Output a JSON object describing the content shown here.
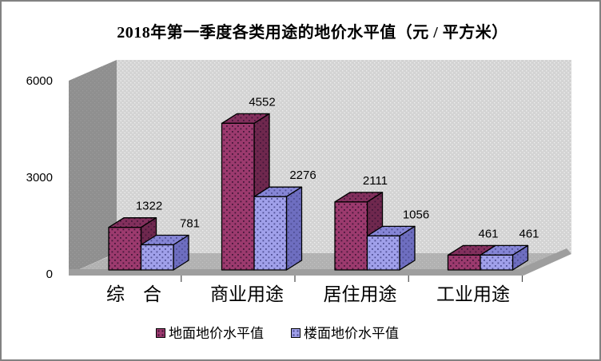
{
  "window": {
    "background": "#ffffff",
    "border_color": "#828282"
  },
  "chart_data": {
    "type": "bar",
    "projection": "3d-clustered-column",
    "title": "2018年第一季度各类用途的地价水平值（元 / 平方米）",
    "categories": [
      "综　合",
      "商业用途",
      "居住用途",
      "工业用途"
    ],
    "series": [
      {
        "name": "地面地价水平值",
        "values": [
          1322,
          4552,
          2111,
          461
        ],
        "color": "#9C3A6E",
        "color_top": "#83305D",
        "color_side": "#6F284E",
        "dot_color": "#44163A"
      },
      {
        "name": "楼面地价水平值",
        "values": [
          781,
          2276,
          1056,
          461
        ],
        "color": "#A0A0EA",
        "color_top": "#8686D6",
        "color_side": "#6E6EC0",
        "dot_color": "#4F4F94"
      }
    ],
    "xlabel": "",
    "ylabel": "",
    "ylim": [
      0,
      6000
    ],
    "yticks": [
      0,
      3000,
      6000
    ],
    "grid": false,
    "value_labels": true,
    "legend_position": "bottom",
    "walls": {
      "back_wall": "#D3D3D3",
      "back_wall_dot": "#EDEDED",
      "side_wall": "#8F8F8F",
      "side_wall_dot": "#9C9C9C",
      "floor": "#B1B1B1",
      "floor_dot": "#C2C2C2",
      "floor_edge": "#9E9E9E",
      "tick_color": "#4a4a4a",
      "bar_outline": "#000000"
    }
  }
}
